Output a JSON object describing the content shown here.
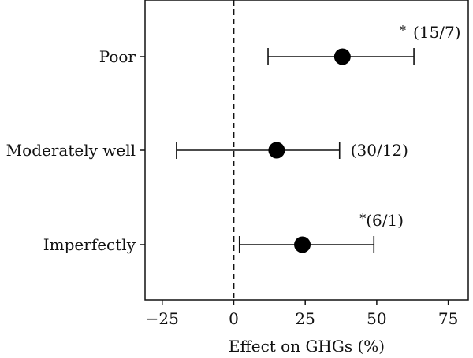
{
  "chart_data": {
    "type": "scatter",
    "title": "",
    "xlabel": "Effect on GHGs (%)",
    "ylabel": "",
    "xlim": [
      -31,
      82
    ],
    "xticks": [
      -25,
      0,
      25,
      50,
      75
    ],
    "xtick_labels": [
      "−25",
      "0",
      "25",
      "50",
      "75"
    ],
    "reference_line": 0,
    "grid": false,
    "legend": "none",
    "categories": [
      "Poor",
      "Moderately well",
      "Imperfectly"
    ],
    "estimates": [
      {
        "category": "Poor",
        "value": 38,
        "lower": 12,
        "upper": 63,
        "significance": "*",
        "annotation": "(15/7)"
      },
      {
        "category": "Moderately well",
        "value": 15,
        "lower": -20,
        "upper": 37,
        "significance": "",
        "annotation": "(30/12)"
      },
      {
        "category": "Imperfectly",
        "value": 24,
        "lower": 2,
        "upper": 49,
        "significance": "*",
        "annotation": "(6/1)"
      }
    ]
  }
}
